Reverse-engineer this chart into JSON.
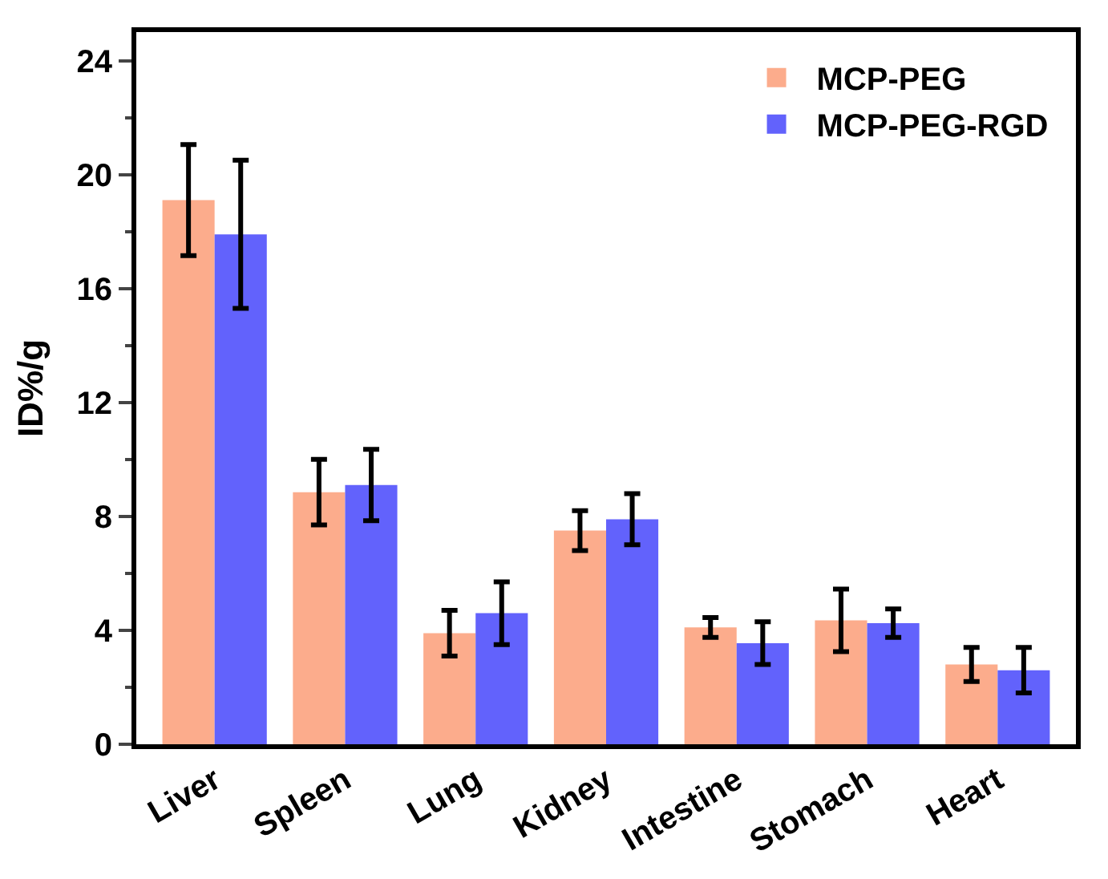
{
  "chart_data": {
    "type": "bar",
    "ylabel": "ID%/g",
    "categories": [
      "Liver",
      "Spleen",
      "Lung",
      "Kidney",
      "Intestine",
      "Stomach",
      "Heart"
    ],
    "series": [
      {
        "name": "MCP-PEG",
        "color": "#fcac8c",
        "values": [
          19.1,
          8.85,
          3.9,
          7.5,
          4.1,
          4.35,
          2.8
        ],
        "errors": [
          1.95,
          1.15,
          0.8,
          0.7,
          0.35,
          1.1,
          0.6
        ]
      },
      {
        "name": "MCP-PEG-RGD",
        "color": "#6262fc",
        "values": [
          17.9,
          9.1,
          4.6,
          7.9,
          3.55,
          4.25,
          2.6
        ],
        "errors": [
          2.6,
          1.25,
          1.1,
          0.9,
          0.75,
          0.5,
          0.8
        ]
      }
    ],
    "ylim": [
      0,
      25
    ],
    "yticks": [
      0,
      4,
      8,
      12,
      16,
      20,
      24
    ],
    "legend": "top right"
  }
}
